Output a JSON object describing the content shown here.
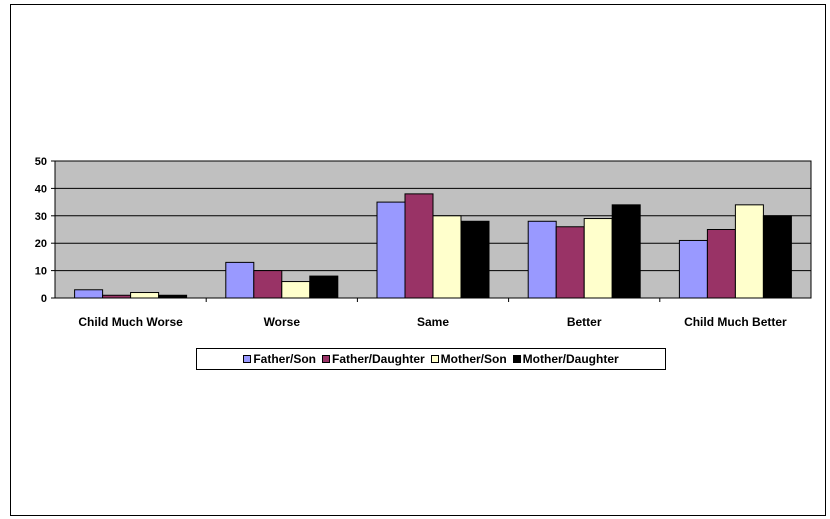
{
  "chart_data": {
    "type": "bar",
    "categories": [
      "Child Much Worse",
      "Worse",
      "Same",
      "Better",
      "Child Much Better"
    ],
    "series": [
      {
        "name": "Father/Son",
        "color": "#9999FF",
        "values": [
          3,
          13,
          35,
          28,
          21
        ]
      },
      {
        "name": "Father/Daughter",
        "color": "#993366",
        "values": [
          1,
          10,
          38,
          26,
          25
        ]
      },
      {
        "name": "Mother/Son",
        "color": "#FFFFCC",
        "values": [
          2,
          6,
          30,
          29,
          34
        ]
      },
      {
        "name": "Mother/Daughter",
        "color": "#000000",
        "values": [
          1,
          8,
          28,
          34,
          30
        ]
      }
    ],
    "ylim": [
      0,
      50
    ],
    "yticks": [
      0,
      10,
      20,
      30,
      40,
      50
    ],
    "grid": true,
    "plot_background": "#C0C0C0",
    "legend_position": "bottom"
  }
}
